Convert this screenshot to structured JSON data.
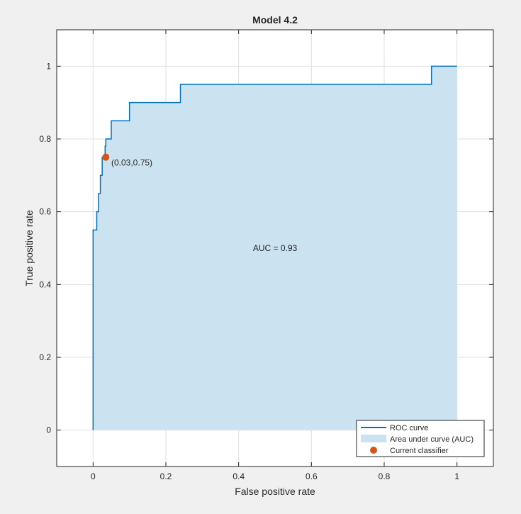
{
  "chart_data": {
    "type": "line",
    "title": "Model 4.2",
    "xlabel": "False positive rate",
    "ylabel": "True positive rate",
    "xlim": [
      -0.1,
      1.1
    ],
    "ylim": [
      -0.1,
      1.1
    ],
    "xticks": [
      0,
      0.2,
      0.4,
      0.6,
      0.8,
      1
    ],
    "yticks": [
      0,
      0.2,
      0.4,
      0.6,
      0.8,
      1
    ],
    "xtick_labels": [
      "0",
      "0.2",
      "0.4",
      "0.6",
      "0.8",
      "1"
    ],
    "ytick_labels": [
      "0",
      "0.2",
      "0.4",
      "0.6",
      "0.8",
      "1"
    ],
    "grid": true,
    "legend_position": "bottom-right",
    "series": [
      {
        "name": "ROC curve",
        "color": "#0072bd",
        "x": [
          0,
          0,
          0.01,
          0.01,
          0.015,
          0.015,
          0.02,
          0.02,
          0.025,
          0.025,
          0.033,
          0.033,
          0.035,
          0.035,
          0.05,
          0.05,
          0.1,
          0.1,
          0.24,
          0.24,
          0.93,
          0.93,
          1
        ],
        "y": [
          0,
          0.55,
          0.55,
          0.6,
          0.6,
          0.65,
          0.65,
          0.7,
          0.7,
          0.75,
          0.75,
          0.78,
          0.78,
          0.8,
          0.8,
          0.85,
          0.85,
          0.9,
          0.9,
          0.95,
          0.95,
          1.0,
          1.0
        ]
      },
      {
        "name": "Area under curve (AUC)",
        "color": "#cbe3f1"
      },
      {
        "name": "Current classifier",
        "color": "#d95319",
        "x": [
          0.035
        ],
        "y": [
          0.75
        ]
      }
    ],
    "annotations": [
      {
        "text": "(0.03,0.75)",
        "x": 0.05,
        "y": 0.735
      },
      {
        "text": "AUC = 0.93",
        "x": 0.5,
        "y": 0.5
      }
    ]
  }
}
